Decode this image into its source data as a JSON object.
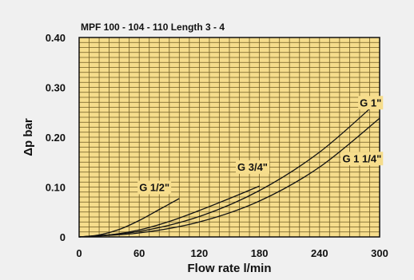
{
  "chart_data": {
    "type": "line",
    "title": "MPF 100 - 104 - 110 Length 3 - 4",
    "xlabel": "Flow rate l/min",
    "ylabel": "Δp bar",
    "xlim": [
      0,
      300
    ],
    "ylim": [
      0,
      0.4
    ],
    "x_ticks": [
      "0",
      "60",
      "120",
      "180",
      "240",
      "300"
    ],
    "y_ticks": [
      "0",
      "0.10",
      "0.20",
      "0.30",
      "0.40"
    ],
    "grid": true,
    "plot_background": "#f6dd8c",
    "grid_color": "#6e5a22",
    "line_color": "#111111",
    "series": [
      {
        "name": "G 1/2\"",
        "x": [
          0,
          20,
          40,
          60,
          80,
          100
        ],
        "y": [
          0,
          0.004,
          0.015,
          0.033,
          0.055,
          0.077
        ]
      },
      {
        "name": "G 3/4\"",
        "x": [
          0,
          30,
          60,
          90,
          120,
          150,
          180
        ],
        "y": [
          0,
          0.004,
          0.014,
          0.031,
          0.053,
          0.077,
          0.102
        ]
      },
      {
        "name": "G 1\"",
        "x": [
          0,
          60,
          120,
          180,
          240,
          300
        ],
        "y": [
          0,
          0.011,
          0.041,
          0.093,
          0.17,
          0.275
        ]
      },
      {
        "name": "G 1 1/4\"",
        "x": [
          0,
          60,
          120,
          180,
          240,
          300
        ],
        "y": [
          0,
          0.008,
          0.03,
          0.072,
          0.14,
          0.238
        ]
      }
    ]
  }
}
